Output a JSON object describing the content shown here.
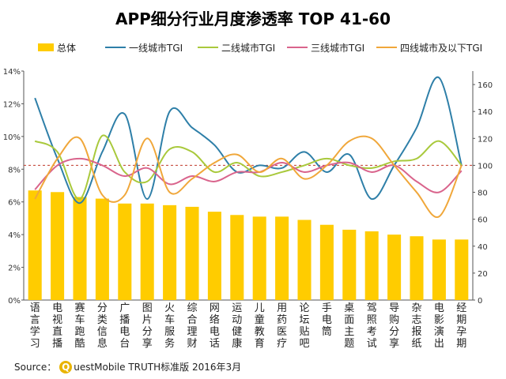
{
  "colors": {
    "bar": "#FFCC00",
    "tier1": "#2E7FA8",
    "tier2": "#A9C93C",
    "tier3": "#D9648C",
    "tier4": "#F0A73A",
    "reference": "#C0392B",
    "axis": "#555555"
  },
  "source": {
    "prefix": "Source：",
    "logo_letter": "Q",
    "text": "uestMobile TRUTH标准版 2016年3月"
  },
  "chart_data": {
    "type": "bar",
    "title": "APP细分行业月度渗透率 TOP 41-60",
    "categories": [
      "语言学习",
      "电视直播",
      "赛车跑酷",
      "分类信息",
      "广播电台",
      "图片分享",
      "火车服务",
      "综合理财",
      "网络电话",
      "运动健康",
      "儿童教育",
      "用药医疗",
      "论坛贴吧",
      "手电筒",
      "桌面主题",
      "驾照考试",
      "导购分享",
      "杂志报纸",
      "电影演出",
      "经期孕期"
    ],
    "left_axis": {
      "ylim": [
        0,
        14
      ],
      "ticks": [
        "0%",
        "2%",
        "4%",
        "6%",
        "8%",
        "10%",
        "12%",
        "14%"
      ]
    },
    "right_axis": {
      "ylim": [
        0,
        170
      ],
      "ticks": [
        "0",
        "20",
        "40",
        "60",
        "80",
        "100",
        "120",
        "140",
        "160"
      ]
    },
    "reference_line": 100,
    "bars": {
      "name": "总体",
      "values": [
        6.7,
        6.6,
        6.3,
        6.2,
        5.9,
        5.9,
        5.8,
        5.7,
        5.4,
        5.2,
        5.1,
        5.1,
        4.9,
        4.6,
        4.3,
        4.2,
        4.0,
        3.9,
        3.7,
        3.7
      ]
    },
    "series": [
      {
        "name": "一线城市TGI",
        "values": [
          150,
          105,
          72,
          110,
          138,
          75,
          140,
          128,
          115,
          95,
          100,
          98,
          110,
          95,
          108,
          75,
          100,
          128,
          165,
          100
        ]
      },
      {
        "name": "二线城市TGI",
        "values": [
          118,
          110,
          75,
          122,
          95,
          88,
          112,
          110,
          95,
          102,
          92,
          95,
          100,
          105,
          100,
          98,
          103,
          105,
          118,
          100
        ]
      },
      {
        "name": "三线城市TGI",
        "values": [
          82,
          100,
          105,
          100,
          92,
          98,
          86,
          92,
          88,
          95,
          95,
          102,
          95,
          100,
          102,
          95,
          100,
          88,
          80,
          96
        ]
      },
      {
        "name": "四线城市及以下TGI",
        "values": [
          75,
          105,
          120,
          78,
          78,
          120,
          80,
          90,
          102,
          108,
          95,
          105,
          90,
          100,
          118,
          120,
          100,
          80,
          62,
          100
        ]
      }
    ],
    "legend_position": "top"
  }
}
